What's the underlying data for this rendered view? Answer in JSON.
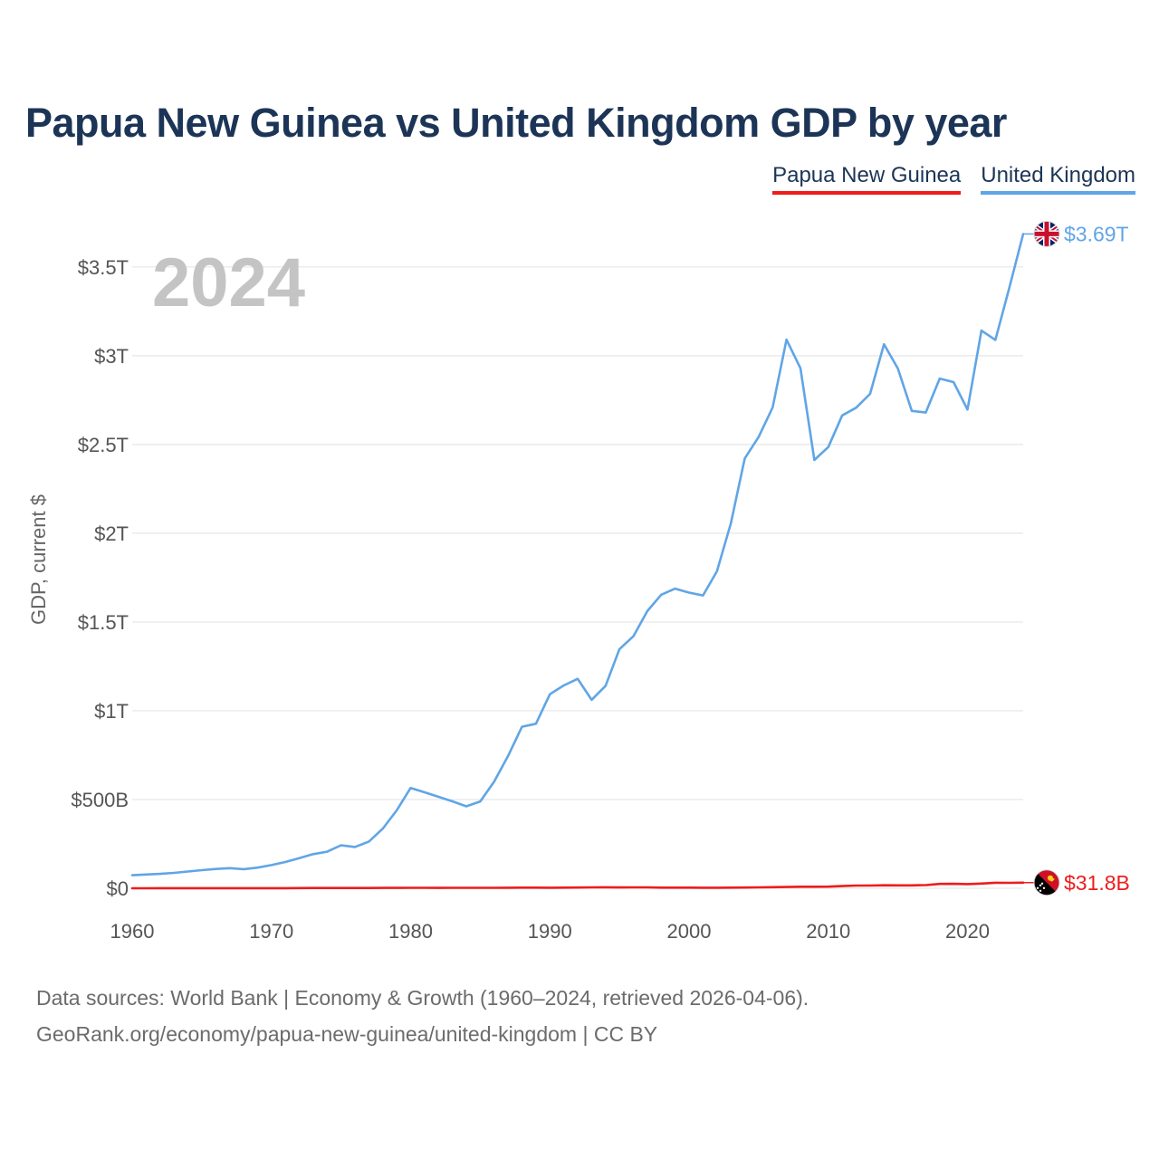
{
  "chart_data": {
    "type": "line",
    "title": "Papua New Guinea vs United Kingdom GDP by year",
    "current_year": "2024",
    "ylabel": "GDP, current $",
    "xlabel": "",
    "xlim": [
      1960,
      2024
    ],
    "ylim": [
      0,
      3800
    ],
    "value_units": "billions of current US$",
    "x_ticks": [
      1960,
      1970,
      1980,
      1990,
      2000,
      2010,
      2020
    ],
    "x_tick_labels": [
      "1960",
      "1970",
      "1980",
      "1990",
      "2000",
      "2010",
      "2020"
    ],
    "y_ticks": [
      0,
      500,
      1000,
      1500,
      2000,
      2500,
      3000,
      3500
    ],
    "y_tick_labels": [
      "$0",
      "$500B",
      "$1T",
      "$1.5T",
      "$2T",
      "$2.5T",
      "$3T",
      "$3.5T"
    ],
    "grid": true,
    "legend_position": "top-right",
    "x": [
      1960,
      1961,
      1962,
      1963,
      1964,
      1965,
      1966,
      1967,
      1968,
      1969,
      1970,
      1971,
      1972,
      1973,
      1974,
      1975,
      1976,
      1977,
      1978,
      1979,
      1980,
      1981,
      1982,
      1983,
      1984,
      1985,
      1986,
      1987,
      1988,
      1989,
      1990,
      1991,
      1992,
      1993,
      1994,
      1995,
      1996,
      1997,
      1998,
      1999,
      2000,
      2001,
      2002,
      2003,
      2004,
      2005,
      2006,
      2007,
      2008,
      2009,
      2010,
      2011,
      2012,
      2013,
      2014,
      2015,
      2016,
      2017,
      2018,
      2019,
      2020,
      2021,
      2022,
      2023,
      2024
    ],
    "series": [
      {
        "name": "Papua New Guinea",
        "color": "#ee1c1c",
        "end_label": "$31.8B",
        "flag_icon": "papua-new-guinea-flag-icon",
        "values": [
          0.23,
          0.24,
          0.26,
          0.28,
          0.31,
          0.35,
          0.39,
          0.43,
          0.48,
          0.54,
          0.65,
          0.75,
          0.91,
          1.29,
          1.46,
          1.37,
          1.49,
          1.56,
          1.83,
          2.09,
          2.55,
          2.36,
          2.22,
          2.32,
          2.33,
          2.39,
          2.57,
          3.04,
          3.6,
          3.59,
          3.22,
          3.79,
          4.17,
          4.95,
          5.41,
          4.63,
          5.15,
          4.94,
          3.79,
          3.55,
          3.52,
          3.08,
          2.99,
          3.54,
          3.93,
          4.87,
          6.09,
          7.11,
          8.71,
          8.57,
          9.43,
          12.37,
          15.26,
          15.45,
          16.88,
          16.36,
          16.29,
          18.01,
          24.26,
          24.85,
          23.62,
          26.59,
          31.36,
          30.7,
          31.8
        ]
      },
      {
        "name": "United Kingdom",
        "color": "#60a5e6",
        "end_label": "$3.69T",
        "flag_icon": "united-kingdom-flag-icon",
        "values": [
          73.2,
          77.7,
          81.2,
          86.6,
          94.4,
          101.8,
          108.6,
          113.0,
          107.8,
          116.5,
          130.7,
          148.1,
          169.9,
          192.5,
          206.1,
          242.1,
          232.6,
          263.1,
          335.9,
          438.9,
          564.9,
          540.8,
          515.0,
          489.6,
          461.5,
          489.3,
          601.5,
          745.2,
          910.1,
          926.9,
          1093.2,
          1142.8,
          1179.7,
          1061.4,
          1140.5,
          1347.3,
          1419.7,
          1561.4,
          1653.7,
          1687.8,
          1665.5,
          1649.8,
          1785.7,
          2054.4,
          2421.5,
          2543.2,
          2708.5,
          3090.5,
          2929.4,
          2412.8,
          2485.5,
          2663.8,
          2707.1,
          2784.9,
          3064.7,
          2927.9,
          2689.1,
          2680.1,
          2871.3,
          2851.4,
          2696.8,
          3141.5,
          3088.8,
          3380.9,
          3686.0
        ]
      }
    ]
  },
  "source": {
    "line1": "Data sources: World Bank | Economy & Growth (1960–2024, retrieved 2026-04-06).",
    "line2": "GeoRank.org/economy/papua-new-guinea/united-kingdom | CC BY"
  }
}
